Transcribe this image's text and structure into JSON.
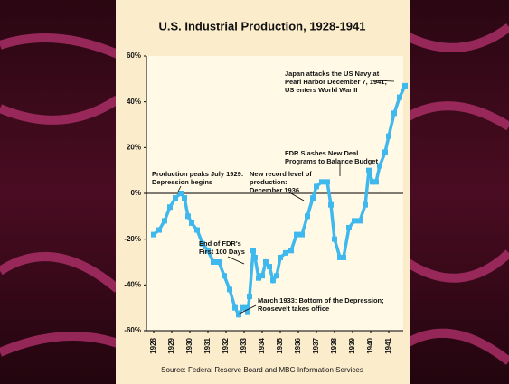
{
  "chart_data": {
    "type": "line",
    "title": "U.S. Industrial Production, 1928-1941",
    "source": "Source: Federal Reserve Board and MBG Information Services",
    "color": "#3fb8ee",
    "x": [
      1928.0,
      1928.3,
      1928.6,
      1928.9,
      1929.2,
      1929.5,
      1929.7,
      1929.9,
      1930.1,
      1930.4,
      1930.7,
      1931.0,
      1931.3,
      1931.6,
      1931.9,
      1932.2,
      1932.5,
      1932.7,
      1932.9,
      1933.1,
      1933.2,
      1933.3,
      1933.5,
      1933.6,
      1933.8,
      1934.0,
      1934.2,
      1934.4,
      1934.6,
      1934.8,
      1935.0,
      1935.3,
      1935.6,
      1935.9,
      1936.2,
      1936.5,
      1936.8,
      1937.0,
      1937.3,
      1937.6,
      1937.8,
      1938.0,
      1938.3,
      1938.5,
      1938.8,
      1939.1,
      1939.4,
      1939.7,
      1939.9,
      1940.1,
      1940.3,
      1940.5,
      1940.8,
      1941.0,
      1941.3,
      1941.6,
      1941.9
    ],
    "values": [
      -18,
      -16,
      -12,
      -6,
      -2,
      0,
      -2,
      -10,
      -13,
      -16,
      -22,
      -25,
      -30,
      -30,
      -36,
      -42,
      -50,
      -53,
      -50,
      -50,
      -52,
      -45,
      -25,
      -28,
      -37,
      -36,
      -30,
      -32,
      -38,
      -36,
      -28,
      -26,
      -25,
      -18,
      -18,
      -10,
      -2,
      3,
      5,
      5,
      -5,
      -20,
      -28,
      -28,
      -15,
      -12,
      -12,
      -5,
      10,
      5,
      5,
      12,
      18,
      25,
      35,
      42,
      47
    ],
    "xlim": [
      1927.6,
      1941.95
    ],
    "xticks": [
      1928,
      1929,
      1930,
      1931,
      1932,
      1933,
      1934,
      1935,
      1936,
      1937,
      1938,
      1939,
      1940,
      1941
    ],
    "ylim": [
      -60,
      60
    ],
    "yticks": [
      {
        "value": -60,
        "label": "-60%"
      },
      {
        "value": -40,
        "label": "-40%"
      },
      {
        "value": -20,
        "label": "-20%"
      },
      {
        "value": 0,
        "label": "0%"
      },
      {
        "value": 20,
        "label": "20%"
      },
      {
        "value": 40,
        "label": "40%"
      },
      {
        "value": 60,
        "label": "60%"
      }
    ],
    "annotations": [
      {
        "lines": [
          "Production peaks July 1929:",
          "Depression begins"
        ]
      },
      {
        "lines": [
          "End of FDR's",
          "First 100 Days"
        ]
      },
      {
        "lines": [
          "March 1933: Bottom of the Depression;",
          "Roosevelt takes office"
        ]
      },
      {
        "lines": [
          "New record level of",
          "production:",
          "December 1936"
        ]
      },
      {
        "lines": [
          "FDR Slashes New Deal",
          "Programs to Balance Budget"
        ]
      },
      {
        "lines": [
          "Japan attacks the US Navy at",
          "Pearl Harbor December 7, 1941;",
          "US enters World War II"
        ]
      }
    ]
  }
}
